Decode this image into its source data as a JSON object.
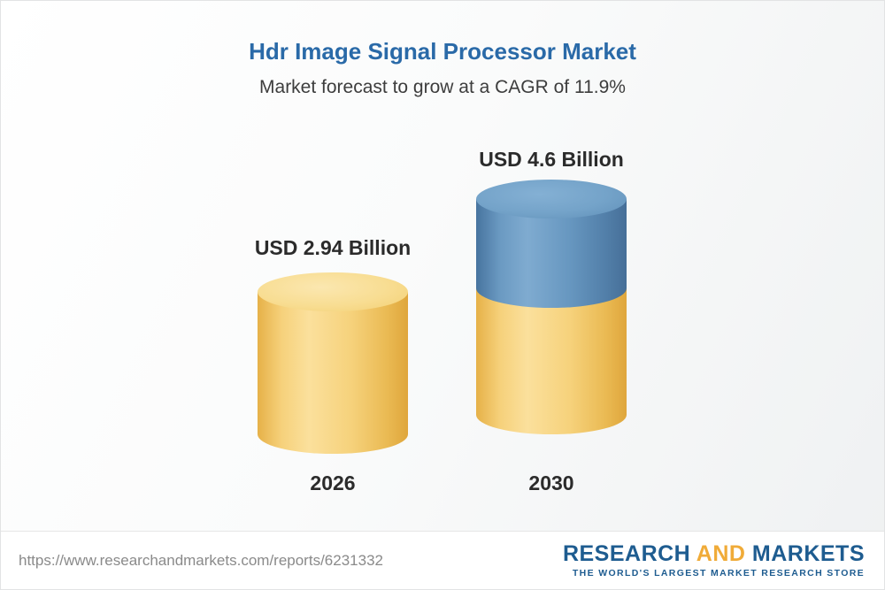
{
  "title": "Hdr Image Signal Processor Market",
  "subtitle": "Market forecast to grow at a CAGR of 11.9%",
  "chart_data": {
    "type": "bar",
    "variant": "3d-cylinder",
    "categories": [
      "2026",
      "2030"
    ],
    "values": [
      2.94,
      4.6
    ],
    "value_labels": [
      "USD 2.94 Billion",
      "USD 4.6 Billion"
    ],
    "unit": "USD Billion",
    "cagr": "11.9%",
    "series_note": "2030 bar shows 2026 base in gold plus growth segment in blue",
    "colors": {
      "base_gold": "#F2C96A",
      "growth_blue": "#5D8CB5",
      "title_blue": "#2A6AA8"
    },
    "legend_position": "none",
    "grid": false
  },
  "footer": {
    "url": "https://www.researchandmarkets.com/reports/6231332",
    "logo": {
      "research": "RESEARCH",
      "and": "AND",
      "markets": "MARKETS",
      "tagline": "THE WORLD'S LARGEST MARKET RESEARCH STORE"
    }
  }
}
